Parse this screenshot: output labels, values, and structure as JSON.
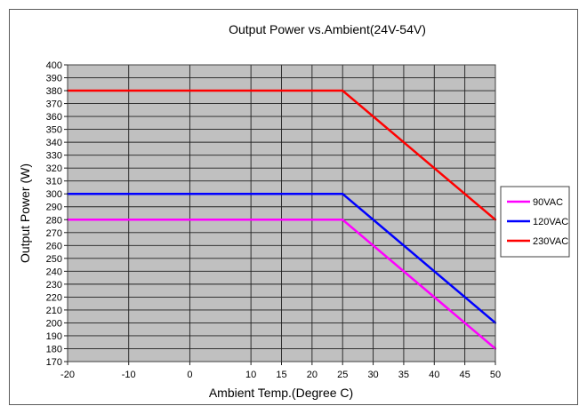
{
  "chart_data": {
    "type": "line",
    "title": "Output  Power vs.Ambient(24V-54V)",
    "xlabel": "Ambient Temp.(Degree C)",
    "ylabel": "Output Power (W)",
    "xlim": [
      -20,
      50
    ],
    "ylim": [
      170,
      400
    ],
    "xticks": [
      -20,
      -10,
      0,
      10,
      15,
      20,
      25,
      30,
      35,
      40,
      45,
      50
    ],
    "yticks": [
      170,
      180,
      190,
      200,
      210,
      220,
      230,
      240,
      250,
      260,
      270,
      280,
      290,
      300,
      310,
      320,
      330,
      340,
      350,
      360,
      370,
      380,
      390,
      400
    ],
    "grid": true,
    "legend_position": "right",
    "plot_background": "#c0c0c0",
    "series": [
      {
        "name": "90VAC",
        "color": "#ff00ff",
        "x": [
          -20,
          25,
          50
        ],
        "y": [
          280,
          280,
          180
        ]
      },
      {
        "name": "120VAC",
        "color": "#0000ff",
        "x": [
          -20,
          25,
          50
        ],
        "y": [
          300,
          300,
          200
        ]
      },
      {
        "name": "230VAC",
        "color": "#ff0000",
        "x": [
          -20,
          25,
          50
        ],
        "y": [
          380,
          380,
          280
        ]
      }
    ]
  }
}
